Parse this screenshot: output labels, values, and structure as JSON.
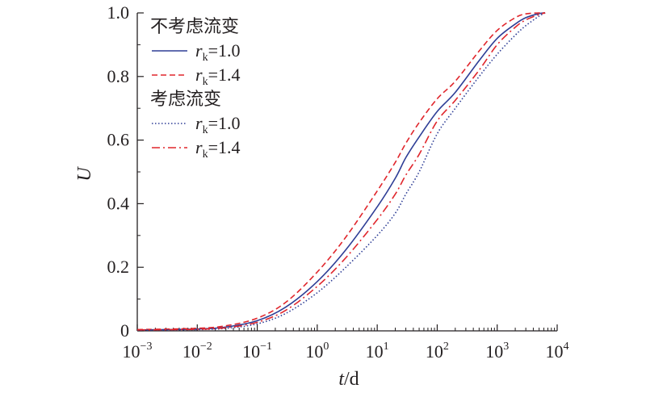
{
  "chart_data": {
    "type": "line",
    "xscale": "log",
    "xlim": [
      0.001,
      10000
    ],
    "ylim": [
      0,
      1.0
    ],
    "xlabel": {
      "italic": "t",
      "unit": "/d"
    },
    "ylabel": "U",
    "grid": false,
    "legend_position": "top-left",
    "x_ticks": [
      {
        "value": 0.001,
        "base": "10",
        "exp": "−3"
      },
      {
        "value": 0.01,
        "base": "10",
        "exp": "−2"
      },
      {
        "value": 0.1,
        "base": "10",
        "exp": "−1"
      },
      {
        "value": 1,
        "base": "10",
        "exp": "0"
      },
      {
        "value": 10,
        "base": "10",
        "exp": "1"
      },
      {
        "value": 100,
        "base": "10",
        "exp": "2"
      },
      {
        "value": 1000,
        "base": "10",
        "exp": "3"
      },
      {
        "value": 10000,
        "base": "10",
        "exp": "4"
      }
    ],
    "y_ticks": [
      {
        "value": 0,
        "label": "0"
      },
      {
        "value": 0.2,
        "label": "0.2"
      },
      {
        "value": 0.4,
        "label": "0.4"
      },
      {
        "value": 0.6,
        "label": "0.6"
      },
      {
        "value": 0.8,
        "label": "0.8"
      },
      {
        "value": 1.0,
        "label": "1.0"
      }
    ],
    "legend_groups": [
      "不考虑流变",
      "考虑流变"
    ],
    "series": [
      {
        "name": "rk=1.0",
        "group": "不考虑流变",
        "r_label": "r",
        "r_sub": "k",
        "r_value": "=1.0",
        "color": "#2e3e96",
        "dash": "solid",
        "x": [
          0.001,
          0.01,
          0.03,
          0.1,
          0.3,
          1,
          3,
          10,
          20,
          30,
          50,
          100,
          200,
          500,
          1000,
          2000,
          3000,
          5000,
          6300
        ],
        "y": [
          0.003,
          0.006,
          0.012,
          0.032,
          0.075,
          0.155,
          0.255,
          0.39,
          0.48,
          0.545,
          0.61,
          0.69,
          0.75,
          0.85,
          0.92,
          0.965,
          0.985,
          0.998,
          1.0
        ]
      },
      {
        "name": "rk=1.4",
        "group": "不考虑流变",
        "r_label": "r",
        "r_sub": "k",
        "r_value": "=1.4",
        "color": "#e0262c",
        "dash": "dashed",
        "x": [
          0.001,
          0.01,
          0.03,
          0.1,
          0.3,
          1,
          3,
          10,
          20,
          30,
          50,
          100,
          200,
          500,
          1000,
          2000,
          3000,
          5000,
          6300
        ],
        "y": [
          0.004,
          0.008,
          0.016,
          0.04,
          0.09,
          0.185,
          0.295,
          0.44,
          0.53,
          0.59,
          0.655,
          0.73,
          0.785,
          0.88,
          0.945,
          0.985,
          0.997,
          1.0,
          1.0
        ]
      },
      {
        "name": "rk=1.0",
        "group": "考虑流变",
        "r_label": "r",
        "r_sub": "k",
        "r_value": "=1.0",
        "color": "#2e3e96",
        "dash": "dotted",
        "x": [
          0.001,
          0.01,
          0.03,
          0.1,
          0.3,
          1,
          3,
          10,
          20,
          30,
          50,
          100,
          200,
          500,
          1000,
          2000,
          3000,
          5000,
          6300
        ],
        "y": [
          0.002,
          0.004,
          0.008,
          0.022,
          0.055,
          0.12,
          0.2,
          0.3,
          0.37,
          0.43,
          0.5,
          0.62,
          0.7,
          0.8,
          0.87,
          0.93,
          0.96,
          0.99,
          1.0
        ]
      },
      {
        "name": "rk=1.4",
        "group": "考虑流变",
        "r_label": "r",
        "r_sub": "k",
        "r_value": "=1.4",
        "color": "#e0262c",
        "dash": "dashdot",
        "x": [
          0.001,
          0.01,
          0.03,
          0.1,
          0.3,
          1,
          3,
          10,
          20,
          30,
          50,
          100,
          200,
          500,
          1000,
          2000,
          3000,
          5000,
          6300
        ],
        "y": [
          0.003,
          0.005,
          0.01,
          0.027,
          0.065,
          0.14,
          0.23,
          0.35,
          0.43,
          0.49,
          0.555,
          0.66,
          0.725,
          0.82,
          0.9,
          0.955,
          0.978,
          0.995,
          1.0
        ]
      }
    ]
  }
}
